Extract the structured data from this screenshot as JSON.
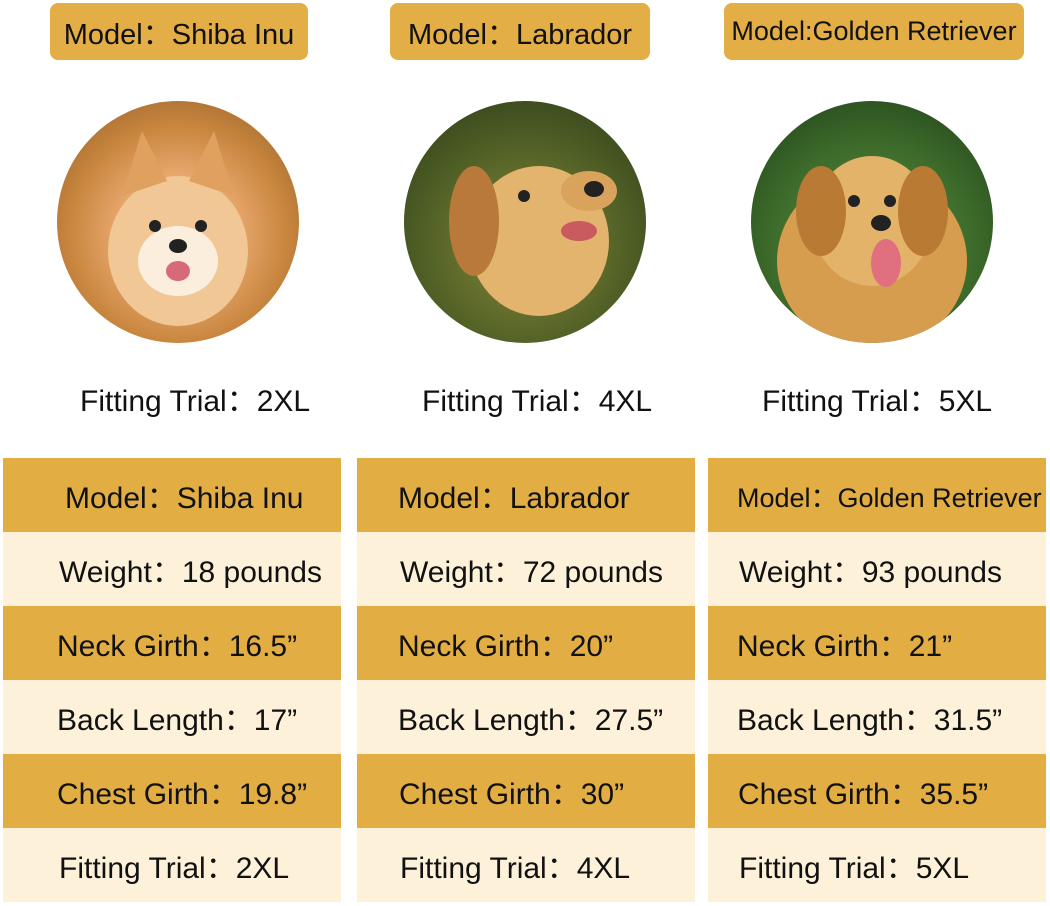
{
  "colors": {
    "gold": "#e2ae44",
    "cream": "#fdf1da"
  },
  "dogs": [
    {
      "badge": "Model：Shiba Inu",
      "photo": "shiba-inu-photo",
      "trial": "Fitting Trial：2XL",
      "rows": [
        "Model：Shiba Inu",
        "Weight：18 pounds",
        "Neck Girth：16.5”",
        "Back Length：17”",
        "Chest Girth：19.8”",
        "Fitting Trial：2XL"
      ]
    },
    {
      "badge": "Model：Labrador",
      "photo": "labrador-photo",
      "trial": "Fitting Trial：4XL",
      "rows": [
        "Model：Labrador",
        "Weight：72 pounds",
        "Neck Girth：20”",
        "Back Length：27.5”",
        "Chest Girth：30”",
        "Fitting Trial：4XL"
      ]
    },
    {
      "badge": "Model:Golden Retriever",
      "photo": "golden-retriever-photo",
      "trial": "Fitting Trial：5XL",
      "rows": [
        "Model：Golden Retriever",
        "Weight：93 pounds",
        "Neck Girth：21”",
        "Back Length：31.5”",
        "Chest Girth：35.5”",
        "Fitting Trial：5XL"
      ]
    }
  ]
}
